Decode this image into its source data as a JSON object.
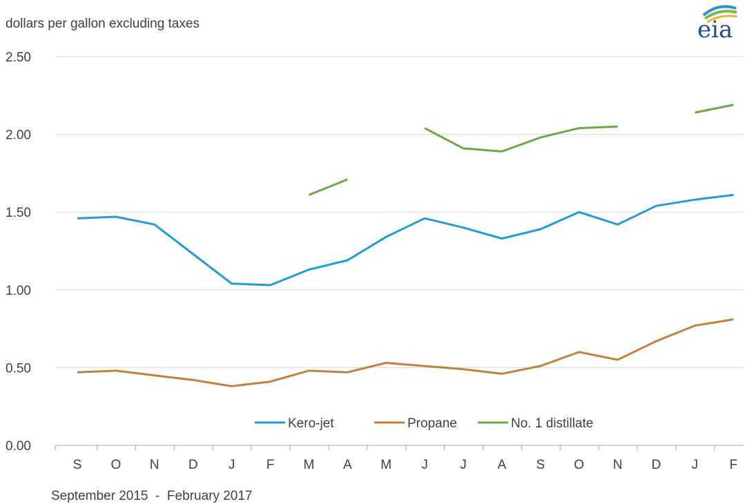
{
  "chart_data": {
    "type": "line",
    "subtitle": "dollars per gallon excluding taxes",
    "xlabel": "September 2015  -  February 2017",
    "ylabel": "",
    "ylim": [
      0,
      2.5
    ],
    "yticks": [
      "0.00",
      "0.50",
      "1.00",
      "1.50",
      "2.00",
      "2.50"
    ],
    "categories": [
      "S",
      "O",
      "N",
      "D",
      "J",
      "F",
      "M",
      "A",
      "M",
      "J",
      "J",
      "A",
      "S",
      "O",
      "N",
      "D",
      "J",
      "F"
    ],
    "grid": true,
    "legend_position": "bottom-center",
    "series": [
      {
        "name": "Kero-jet",
        "color": "#1f9bd7",
        "values": [
          1.46,
          1.47,
          1.42,
          1.23,
          1.04,
          1.03,
          1.13,
          1.19,
          1.34,
          1.46,
          1.4,
          1.33,
          1.39,
          1.5,
          1.42,
          1.54,
          1.58,
          1.61
        ]
      },
      {
        "name": "Propane",
        "color": "#c47f3c",
        "values": [
          0.47,
          0.48,
          0.45,
          0.42,
          0.38,
          0.41,
          0.48,
          0.47,
          0.53,
          0.51,
          0.49,
          0.46,
          0.51,
          0.6,
          0.55,
          0.67,
          0.77,
          0.81
        ]
      },
      {
        "name": "No. 1 distillate",
        "color": "#6aa842",
        "values": [
          null,
          null,
          null,
          null,
          null,
          null,
          1.61,
          1.71,
          null,
          2.04,
          1.91,
          1.89,
          1.98,
          2.04,
          2.05,
          null,
          2.14,
          2.19
        ]
      }
    ]
  },
  "logo": {
    "text": "eia",
    "colors": [
      "#1a4f8a",
      "#2f8fd0",
      "#7ab648",
      "#f2b134"
    ]
  }
}
